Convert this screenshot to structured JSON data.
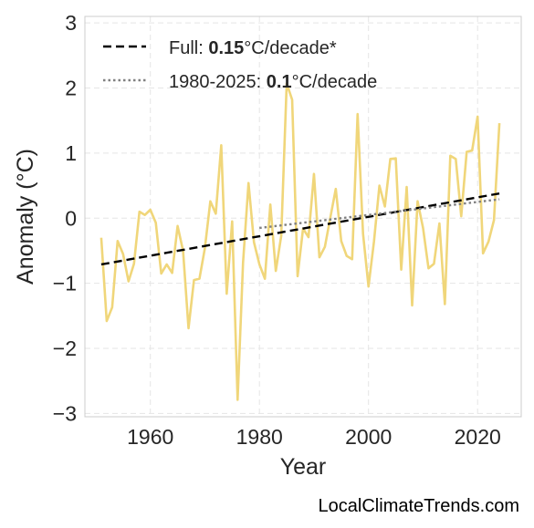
{
  "chart_data": {
    "type": "line",
    "xlabel": "Year",
    "ylabel": "Anomaly (°C)",
    "xlim": [
      1948,
      2028
    ],
    "ylim": [
      -3.05,
      3.1
    ],
    "xticks": [
      1960,
      1980,
      2000,
      2020
    ],
    "yticks": [
      -3,
      -2,
      -1,
      0,
      1,
      2,
      3
    ],
    "ytick_labels": [
      "−3",
      "−2",
      "−1",
      "0",
      "1",
      "2",
      "3"
    ],
    "grid": true,
    "legend_position": "top-left",
    "series": [
      {
        "style": "solid",
        "color": "#f0d67a",
        "x": [
          1951,
          1952,
          1953,
          1954,
          1955,
          1956,
          1957,
          1958,
          1959,
          1960,
          1961,
          1962,
          1963,
          1964,
          1965,
          1966,
          1967,
          1968,
          1969,
          1970,
          1971,
          1972,
          1973,
          1974,
          1975,
          1976,
          1977,
          1978,
          1979,
          1980,
          1981,
          1982,
          1983,
          1984,
          1985,
          1986,
          1987,
          1988,
          1989,
          1990,
          1991,
          1992,
          1993,
          1994,
          1995,
          1996,
          1997,
          1998,
          1999,
          2000,
          2001,
          2002,
          2003,
          2004,
          2005,
          2006,
          2007,
          2008,
          2009,
          2010,
          2011,
          2012,
          2013,
          2014,
          2015,
          2016,
          2017,
          2018,
          2019,
          2020,
          2021,
          2022,
          2023,
          2024
        ],
        "y": [
          -0.3,
          -1.58,
          -1.37,
          -0.35,
          -0.55,
          -0.97,
          -0.7,
          0.1,
          0.05,
          0.13,
          -0.07,
          -0.85,
          -0.71,
          -0.84,
          -0.12,
          -0.5,
          -1.69,
          -0.95,
          -0.93,
          -0.46,
          0.26,
          0.07,
          1.12,
          -1.16,
          -0.05,
          -2.79,
          -0.68,
          0.54,
          -0.37,
          -0.71,
          -0.93,
          0.21,
          -0.81,
          -0.27,
          2.07,
          1.82,
          -0.89,
          -0.16,
          -0.29,
          0.68,
          -0.6,
          -0.44,
          0.01,
          0.45,
          -0.35,
          -0.58,
          -0.63,
          1.6,
          -0.24,
          -1.05,
          -0.36,
          0.5,
          0.18,
          0.91,
          0.92,
          -0.79,
          0.48,
          -1.34,
          0.26,
          -0.15,
          -0.77,
          -0.7,
          -0.08,
          -1.32,
          0.96,
          0.91,
          0.03,
          1.02,
          1.04,
          1.56,
          -0.54,
          -0.36,
          -0.03,
          1.46
        ]
      },
      {
        "name": "Full",
        "style": "dashed",
        "color": "#000000",
        "x": [
          1951,
          2024
        ],
        "y": [
          -0.71,
          0.38
        ]
      },
      {
        "name": "1980-2025",
        "style": "dotted",
        "color": "#808080",
        "x": [
          1980,
          2024
        ],
        "y": [
          -0.15,
          0.29
        ]
      }
    ],
    "legend": [
      {
        "prefix": "Full: ",
        "value": "0.15",
        "suffix": "°C/decade*",
        "style": "dashed",
        "color": "#000000"
      },
      {
        "prefix": "1980-2025: ",
        "value": "0.1",
        "suffix": "°C/decade",
        "style": "dotted",
        "color": "#808080"
      }
    ]
  },
  "watermark": "LocalClimateTrends.com"
}
